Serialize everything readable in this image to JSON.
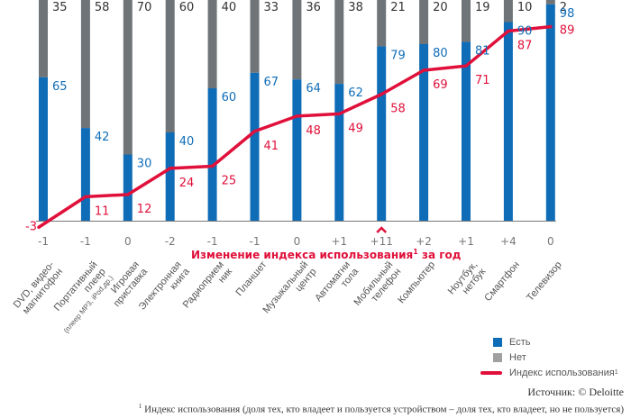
{
  "chart_data": {
    "type": "bar",
    "subtype": "stacked-bar-with-line",
    "categories": [
      "DVD, видео-магнитофон",
      "Портативный плеер (плеер MP3, iPod и др.)",
      "Игровая приставка",
      "Электронная книга",
      "Радиоприемник",
      "Планшет",
      "Музыкальный центр",
      "Автомагнитола",
      "Мобильный телефон",
      "Компьютер",
      "Ноутбук, нетбук",
      "Смартфон",
      "Телевизор"
    ],
    "category_lines": [
      [
        "DVD, видео-",
        "магнитофон"
      ],
      [
        "Портативный",
        "плеер",
        "(плеер MP3, iPod,др.)"
      ],
      [
        "Игровая",
        "приставка"
      ],
      [
        "Электронная",
        "книга"
      ],
      [
        "Радиоприем",
        "ник"
      ],
      [
        "Планшет"
      ],
      [
        "Музыкальный",
        "центр"
      ],
      [
        "Автомагни",
        "тола"
      ],
      [
        "Мобильный",
        "телефон"
      ],
      [
        "Компьютер"
      ],
      [
        "Ноутбук,",
        "нетбук"
      ],
      [
        "Смартфон"
      ],
      [
        "Телевизор"
      ]
    ],
    "series": [
      {
        "name": "Есть",
        "type": "bar",
        "color": "#0f6db8",
        "values": [
          65,
          42,
          30,
          40,
          60,
          67,
          64,
          62,
          79,
          80,
          81,
          90,
          98
        ]
      },
      {
        "name": "Нет",
        "type": "bar",
        "color": "#6f7478",
        "values": [
          35,
          58,
          70,
          60,
          40,
          33,
          36,
          38,
          21,
          20,
          19,
          10,
          2
        ]
      },
      {
        "name": "Индекс использования",
        "type": "line",
        "color": "#e0103a",
        "values": [
          -3,
          11,
          12,
          24,
          25,
          41,
          48,
          49,
          58,
          69,
          71,
          87,
          89
        ]
      }
    ],
    "index_change": [
      "-1",
      "-1",
      "0",
      "-2",
      "-1",
      "-1",
      "0",
      "+1",
      "+11",
      "+2",
      "+1",
      "+4",
      "0"
    ],
    "highlight_index": 8,
    "xlabel": "Изменение индекса использования",
    "xlabel_suffix": "за год",
    "ylim": [
      0,
      100
    ],
    "grid": false,
    "legend_position": "bottom-right"
  },
  "legend": {
    "items": [
      {
        "label": "Есть",
        "color": "#0f6db8"
      },
      {
        "label": "Нет",
        "color": "#a0a0a0"
      },
      {
        "label": "Индекс использования",
        "color": "#e0103a"
      }
    ]
  },
  "footer": {
    "source": "Источник: © Deloitte",
    "footnote_mark": "1",
    "footnote": "Индекс использования (доля тех, кто владеет и пользуется устройством – доля тех, кто владеет, но не пользуется)"
  },
  "superscript": "1"
}
